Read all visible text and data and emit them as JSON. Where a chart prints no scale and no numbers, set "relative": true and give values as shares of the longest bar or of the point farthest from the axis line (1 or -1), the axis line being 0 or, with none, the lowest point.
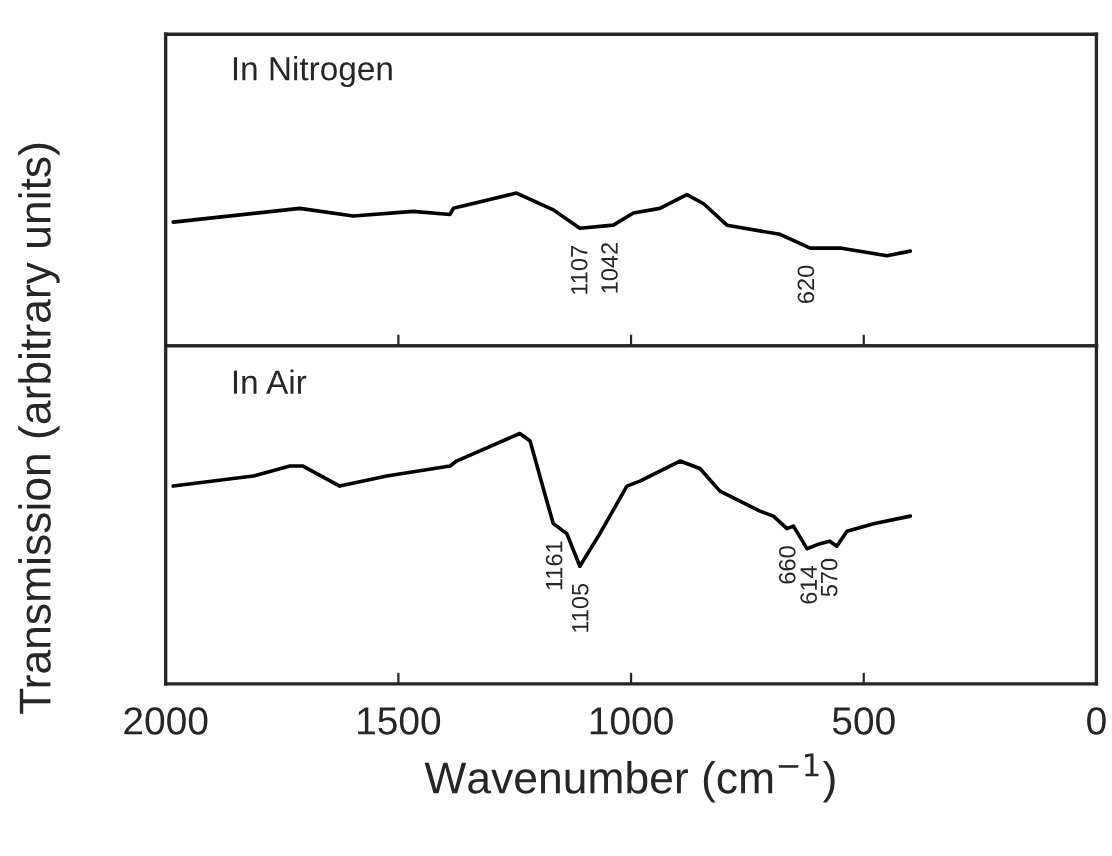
{
  "chart_data": [
    {
      "type": "line",
      "relative": true,
      "title": "In Nitrogen",
      "ylabel": "Transmission (arbitrary units)",
      "xlim": [
        2000,
        0
      ],
      "xticks": [
        2000,
        1500,
        1000,
        500,
        0
      ],
      "tick_labels": false,
      "x": [
        1984,
        1712,
        1597,
        1468,
        1389,
        1382,
        1246,
        1167,
        1110,
        1038,
        995,
        938,
        880,
        844,
        794,
        680,
        615,
        551,
        450,
        400
      ],
      "series": [
        {
          "color": "#000000",
          "values": [
            0.81,
            0.9,
            0.85,
            0.88,
            0.86,
            0.9,
            1,
            0.89,
            0.77,
            0.79,
            0.87,
            0.9,
            0.99,
            0.93,
            0.79,
            0.73,
            0.64,
            0.64,
            0.59,
            0.62
          ]
        }
      ],
      "annotations": [
        {
          "text": "1107",
          "x": 1107,
          "y": 0.77
        },
        {
          "text": "1042",
          "x": 1042,
          "y": 0.79
        },
        {
          "text": "620",
          "x": 620,
          "y": 0.64
        }
      ]
    },
    {
      "type": "line",
      "relative": true,
      "title": "In Air",
      "xlabel": "Wavenumber (cm$^{−1}$)",
      "xlim": [
        2000,
        0
      ],
      "xticks": [
        2000,
        1500,
        1000,
        500,
        0
      ],
      "tick_labels": "x",
      "x": [
        1984,
        1812,
        1733,
        1705,
        1626,
        1525,
        1389,
        1375,
        1239,
        1217,
        1181,
        1167,
        1138,
        1110,
        1067,
        1009,
        981,
        895,
        852,
        809,
        723,
        694,
        665,
        651,
        622,
        594,
        573,
        558,
        536,
        479,
        400
      ],
      "series": [
        {
          "color": "#000000",
          "values": [
            0.79,
            0.83,
            0.87,
            0.87,
            0.79,
            0.83,
            0.87,
            0.89,
            1,
            0.97,
            0.73,
            0.64,
            0.6,
            0.47,
            0.6,
            0.79,
            0.81,
            0.89,
            0.86,
            0.77,
            0.69,
            0.67,
            0.62,
            0.63,
            0.54,
            0.56,
            0.57,
            0.55,
            0.61,
            0.64,
            0.67
          ]
        }
      ],
      "annotations": [
        {
          "text": "1161",
          "x": 1161,
          "y": 0.64
        },
        {
          "text": "1105",
          "x": 1105,
          "y": 0.47
        },
        {
          "text": "660",
          "x": 660,
          "y": 0.62
        },
        {
          "text": "614",
          "x": 614,
          "y": 0.54
        },
        {
          "text": "570",
          "x": 570,
          "y": 0.57
        }
      ]
    }
  ]
}
